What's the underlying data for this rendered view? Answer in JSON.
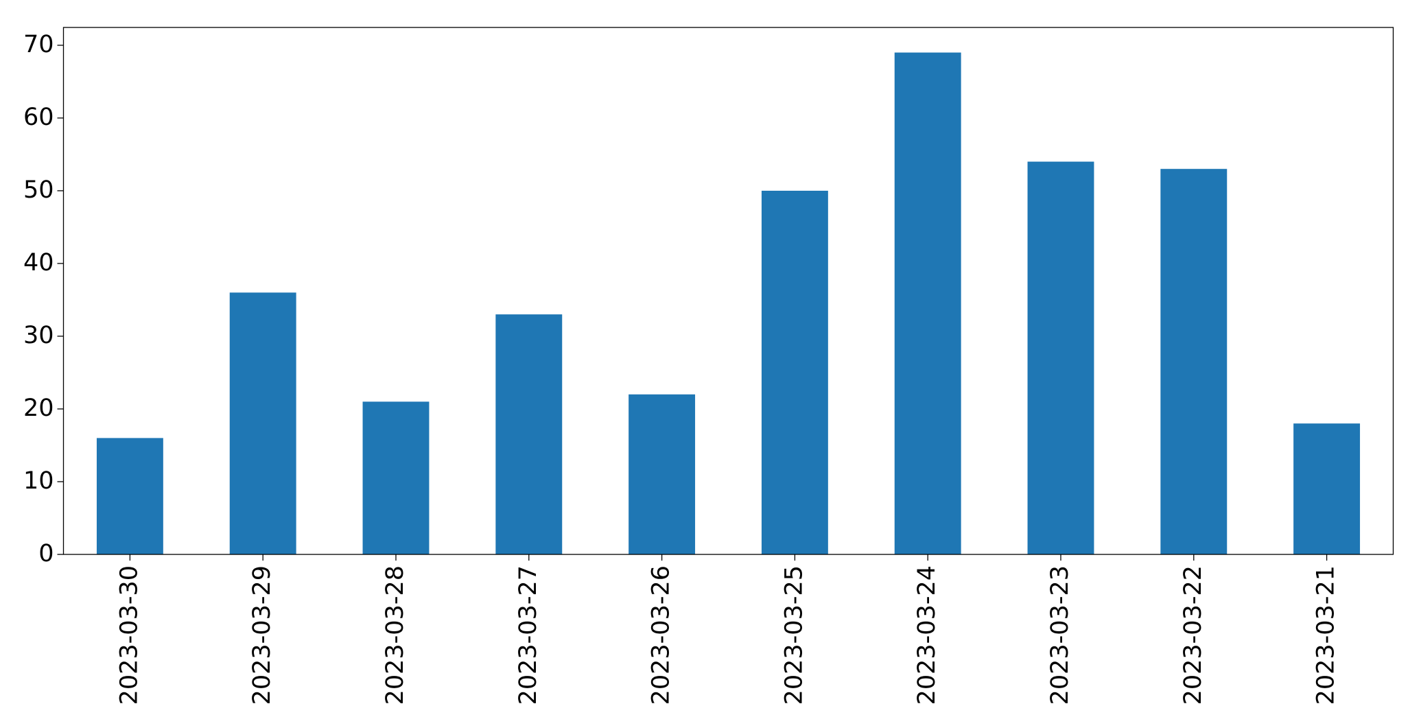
{
  "chart_data": {
    "type": "bar",
    "categories": [
      "2023-03-30",
      "2023-03-29",
      "2023-03-28",
      "2023-03-27",
      "2023-03-26",
      "2023-03-25",
      "2023-03-24",
      "2023-03-23",
      "2023-03-22",
      "2023-03-21"
    ],
    "values": [
      16,
      36,
      21,
      33,
      22,
      50,
      69,
      54,
      53,
      18
    ],
    "color": "#1f77b4",
    "ylim": [
      0,
      72.45
    ],
    "yticks": [
      0,
      10,
      20,
      30,
      40,
      50,
      60,
      70
    ],
    "grid": false
  }
}
